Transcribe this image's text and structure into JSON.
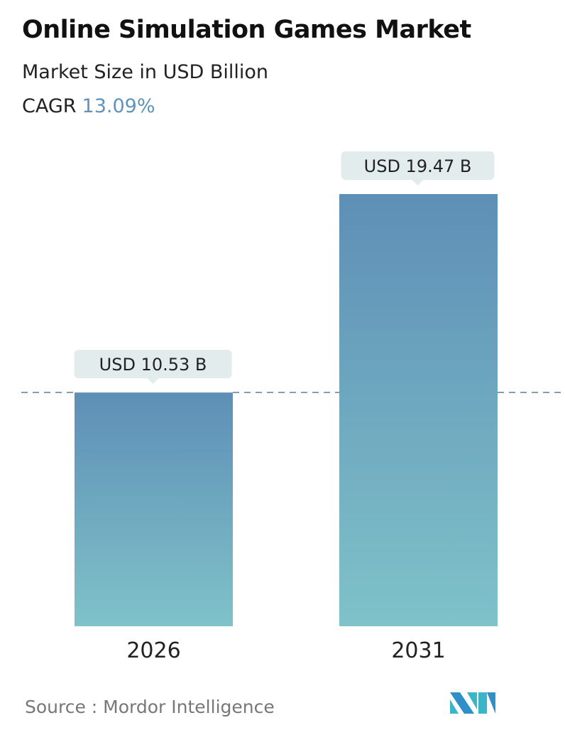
{
  "title": "Online Simulation Games Market",
  "subtitle": "Market Size in USD Billion",
  "cagr_label": "CAGR",
  "cagr_value": "13.09%",
  "source": "Source :  Mordor Intelligence",
  "logo_text": "Mordor Intelligence",
  "colors": {
    "bar_top": "#5e8fb6",
    "bar_bottom": "#7fc2c9",
    "accent": "#5e93bb",
    "label_bg": "#e3ecec"
  },
  "chart_data": {
    "type": "bar",
    "categories": [
      "2026",
      "2031"
    ],
    "values": [
      10.53,
      19.47
    ],
    "data_labels": [
      "USD 10.53 B",
      "USD 19.47 B"
    ],
    "reference_line": 10.53,
    "unit": "USD Billion",
    "grid": false
  }
}
